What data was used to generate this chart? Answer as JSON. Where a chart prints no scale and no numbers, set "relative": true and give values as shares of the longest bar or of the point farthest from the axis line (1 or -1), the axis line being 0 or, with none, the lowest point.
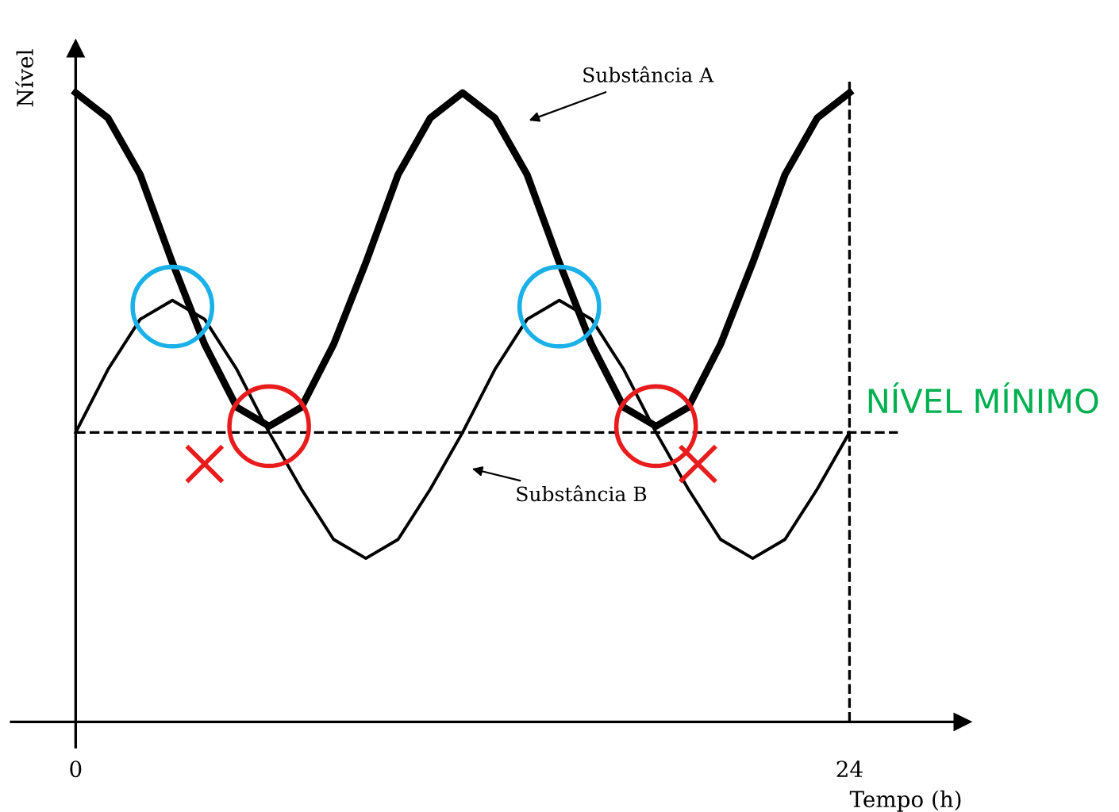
{
  "chart_data": {
    "type": "line",
    "relative": true,
    "xlabel": "Tempo (h)",
    "ylabel": "Nível",
    "xlim": [
      -2,
      27.5
    ],
    "xticks": [
      0,
      24
    ],
    "tick_labels": "x",
    "grid": false,
    "legend": false,
    "series": [
      {
        "type": "line",
        "color": "#000000",
        "x": [
          0,
          1,
          2,
          3,
          4,
          5,
          6,
          7,
          8,
          9,
          10,
          11,
          12,
          13,
          14,
          15,
          16,
          17,
          18,
          19,
          20,
          21,
          22,
          23,
          24
        ],
        "values": [
          1.0,
          0.96,
          0.87,
          0.73,
          0.6,
          0.5,
          0.47,
          0.5,
          0.6,
          0.73,
          0.87,
          0.96,
          1.0,
          0.96,
          0.87,
          0.73,
          0.6,
          0.5,
          0.47,
          0.5,
          0.6,
          0.73,
          0.87,
          0.96,
          1.0
        ]
      },
      {
        "type": "line",
        "color": "#000000",
        "x": [
          0,
          1,
          2,
          3,
          4,
          5,
          6,
          7,
          8,
          9,
          10,
          11,
          12,
          13,
          14,
          15,
          16,
          17,
          18,
          19,
          20,
          21,
          22,
          23,
          24
        ],
        "values": [
          0.46,
          0.56,
          0.64,
          0.67,
          0.64,
          0.56,
          0.46,
          0.37,
          0.29,
          0.26,
          0.29,
          0.37,
          0.46,
          0.56,
          0.64,
          0.67,
          0.64,
          0.56,
          0.46,
          0.37,
          0.29,
          0.26,
          0.29,
          0.37,
          0.46
        ]
      },
      {
        "type": "scatter",
        "marker": "circle",
        "color": "#1ab0e8",
        "x": [
          3,
          15
        ],
        "values": [
          0.66,
          0.66
        ]
      },
      {
        "type": "scatter",
        "marker": "circle",
        "color": "#e81c1c",
        "x": [
          6,
          18
        ],
        "values": [
          0.47,
          0.47
        ]
      },
      {
        "type": "scatter",
        "marker": "cross",
        "color": "#e81c1c",
        "x": [
          4,
          19.3
        ],
        "values": [
          0.41,
          0.41
        ]
      }
    ],
    "ref_lines": [
      {
        "axis": "y",
        "value": 0.46,
        "label": "NÍVEL MÍNIMO",
        "color": "#000000",
        "line_style": "dashed"
      },
      {
        "axis": "x",
        "value": 24,
        "line_style": "dashed",
        "color": "#000000"
      }
    ],
    "annotations": [
      "Substância A",
      "Substância B"
    ]
  }
}
